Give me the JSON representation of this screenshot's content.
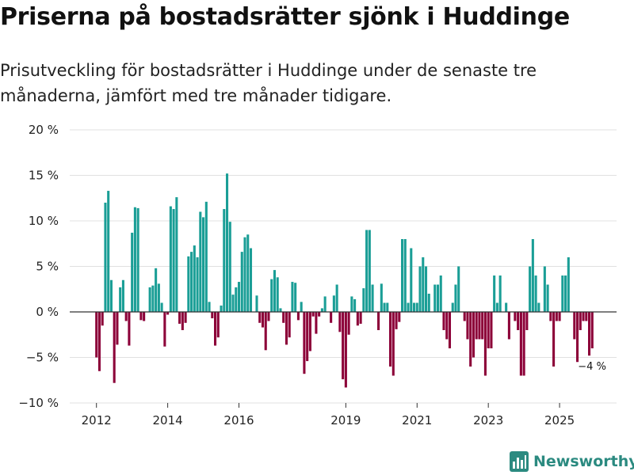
{
  "title": "Priserna på bostadsrätter sjönk i Huddinge",
  "subtitle": "Prisutveckling för bostadsrätter i Huddinge under de senaste tre månaderna, jämfört med tre månader tidigare.",
  "brand": {
    "name": "Newsworthy"
  },
  "colors": {
    "positive": "#1a9e96",
    "negative": "#8c0038",
    "grid": "#e0e0e0",
    "axis": "#333333",
    "brand": "#2b8a80"
  },
  "chart_data": {
    "type": "bar",
    "title": "Priserna på bostadsrätter sjönk i Huddinge",
    "ylabel": "",
    "xlabel": "",
    "ylim": [
      -10,
      20
    ],
    "y_ticks": [
      {
        "value": 20,
        "label": "20 %"
      },
      {
        "value": 15,
        "label": "15 %"
      },
      {
        "value": 10,
        "label": "10 %"
      },
      {
        "value": 5,
        "label": "5 %"
      },
      {
        "value": 0,
        "label": "0 %"
      },
      {
        "value": -5,
        "label": "−5 %"
      },
      {
        "value": -10,
        "label": "−10 %"
      }
    ],
    "x_ticks": [
      {
        "value": 2012,
        "label": "2012"
      },
      {
        "value": 2014,
        "label": "2014"
      },
      {
        "value": 2016,
        "label": "2016"
      },
      {
        "value": 2019,
        "label": "2019"
      },
      {
        "value": 2021,
        "label": "2021"
      },
      {
        "value": 2023,
        "label": "2023"
      },
      {
        "value": 2025,
        "label": "2025"
      }
    ],
    "x_domain": [
      2011.25,
      2026.6
    ],
    "start_year": 2012,
    "months_per_bar": 1,
    "end_label": "−4 %",
    "values": [
      -5,
      -6.5,
      -1.5,
      12,
      13.3,
      3.5,
      -7.8,
      -3.6,
      2.7,
      3.5,
      -1,
      -3.7,
      8.7,
      11.5,
      11.4,
      -0.9,
      -1,
      0,
      2.7,
      2.9,
      4.8,
      3.1,
      1,
      -3.8,
      -0.3,
      11.6,
      11.3,
      12.6,
      -1.3,
      -2,
      -1.2,
      6.1,
      6.6,
      7.3,
      6,
      11,
      10.4,
      12.1,
      1.1,
      -0.7,
      -3.7,
      -2.8,
      0.7,
      11.3,
      15.2,
      9.9,
      1.9,
      2.7,
      3.3,
      6.6,
      8.2,
      8.5,
      7,
      0,
      1.8,
      -1.2,
      -1.7,
      -4.2,
      -1,
      3.6,
      4.6,
      3.8,
      0.4,
      -1.2,
      -3.6,
      -2.8,
      3.3,
      3.2,
      -0.9,
      1.1,
      -6.8,
      -5.4,
      -4.3,
      -0.5,
      -2.4,
      -0.5,
      0.4,
      1.7,
      0,
      -1.2,
      1.8,
      3,
      -2.2,
      -7.4,
      -8.3,
      -2.5,
      1.7,
      1.4,
      -1.5,
      -1.3,
      2.6,
      9,
      9,
      3,
      0,
      -2,
      3.1,
      1,
      1,
      -6,
      -7,
      -1.9,
      -1.1,
      8,
      8,
      1,
      7,
      1,
      1,
      5,
      6,
      5,
      2,
      0,
      3,
      3,
      4,
      -2,
      -3,
      -4,
      1,
      3,
      5,
      0,
      -1,
      -3,
      -6,
      -5,
      -3,
      -3,
      -3,
      -7,
      -4,
      -4,
      4,
      1,
      4,
      0,
      1,
      -3,
      0,
      -1,
      -2,
      -7,
      -7,
      -2,
      5,
      8,
      4,
      1,
      0,
      5,
      3,
      -1,
      -6,
      -1,
      -1,
      4,
      4,
      6,
      0,
      -3,
      -5.5,
      -2,
      -1,
      -1,
      -4.8,
      -4
    ]
  }
}
